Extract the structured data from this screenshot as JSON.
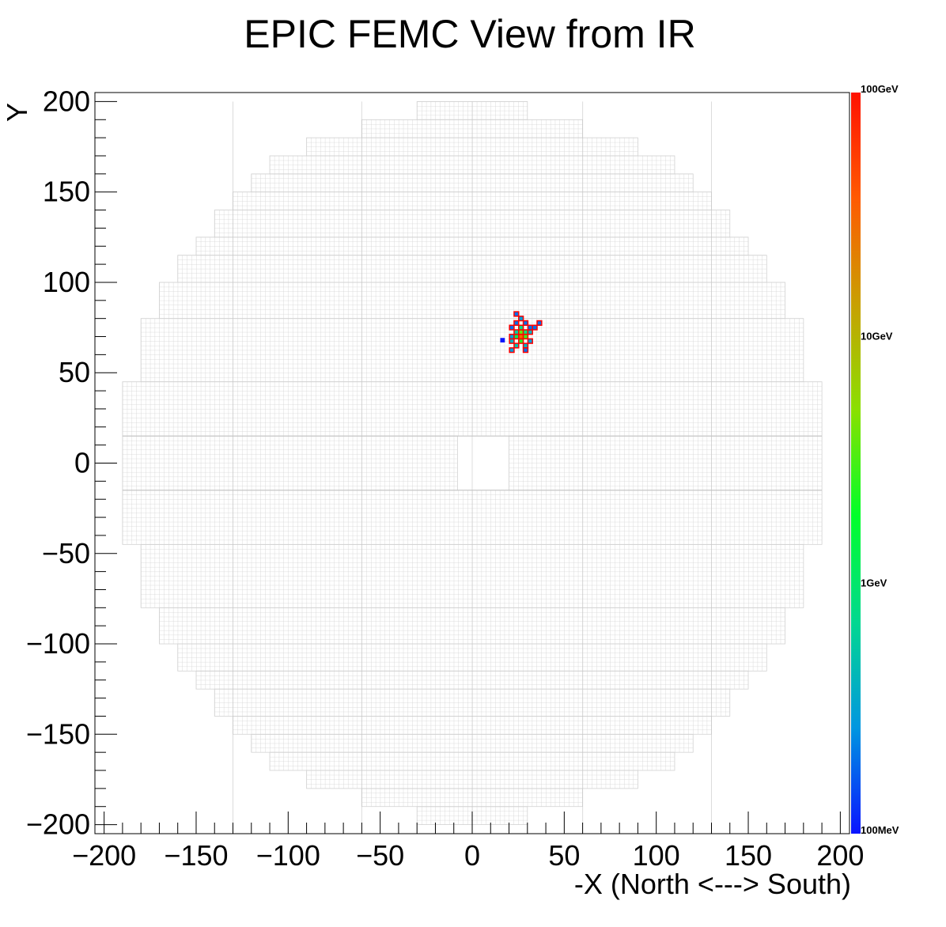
{
  "chart_data": {
    "type": "heatmap",
    "title": "EPIC FEMC View from IR",
    "xlabel": "-X (North <---> South)",
    "ylabel": "Y",
    "xlim": [
      -205,
      205
    ],
    "ylim": [
      -205,
      205
    ],
    "x_ticks": [
      -200,
      -150,
      -100,
      -50,
      0,
      50,
      100,
      150,
      200
    ],
    "x_tick_labels": [
      "−200",
      "−150",
      "−100",
      "−50",
      "0",
      "50",
      "100",
      "150",
      "200"
    ],
    "y_ticks": [
      -200,
      -150,
      -100,
      -50,
      0,
      50,
      100,
      150,
      200
    ],
    "y_tick_labels": [
      "−200",
      "−150",
      "−100",
      "−50",
      "0",
      "50",
      "100",
      "150",
      "200"
    ],
    "color_scale": {
      "scale": "log",
      "labels": [
        "100MeV",
        "1GeV",
        "10GeV",
        "100GeV"
      ],
      "colors": [
        "#0a14ff",
        "#0096e0",
        "#00d890",
        "#00ff2a",
        "#8ae000",
        "#c8a000",
        "#ff5a00",
        "#ff1200"
      ]
    },
    "detector": {
      "tower_size": 2.5,
      "outline_color": "#d2d2d2",
      "beam_hole": {
        "x": [
          -8,
          20
        ],
        "y": [
          -15,
          15
        ]
      },
      "rows": [
        {
          "y": [
            190,
            200
          ],
          "x": [
            -30,
            30
          ]
        },
        {
          "y": [
            180,
            190
          ],
          "x": [
            -60,
            60
          ]
        },
        {
          "y": [
            170,
            180
          ],
          "x": [
            -90,
            90
          ]
        },
        {
          "y": [
            160,
            170
          ],
          "x": [
            -110,
            110
          ]
        },
        {
          "y": [
            150,
            160
          ],
          "x": [
            -120,
            120
          ]
        },
        {
          "y": [
            140,
            150
          ],
          "x": [
            -130,
            130
          ]
        },
        {
          "y": [
            125,
            140
          ],
          "x": [
            -140,
            140
          ]
        },
        {
          "y": [
            115,
            125
          ],
          "x": [
            -150,
            150
          ]
        },
        {
          "y": [
            100,
            115
          ],
          "x": [
            -160,
            160
          ]
        },
        {
          "y": [
            80,
            100
          ],
          "x": [
            -170,
            170
          ]
        },
        {
          "y": [
            45,
            80
          ],
          "x": [
            -180,
            180
          ]
        },
        {
          "y": [
            15,
            45
          ],
          "x": [
            -190,
            190
          ]
        },
        {
          "y": [
            -15,
            15
          ],
          "x": [
            -190,
            190
          ]
        },
        {
          "y": [
            -45,
            -15
          ],
          "x": [
            -190,
            190
          ]
        },
        {
          "y": [
            -80,
            -45
          ],
          "x": [
            -180,
            180
          ]
        },
        {
          "y": [
            -100,
            -80
          ],
          "x": [
            -170,
            170
          ]
        },
        {
          "y": [
            -115,
            -100
          ],
          "x": [
            -160,
            160
          ]
        },
        {
          "y": [
            -125,
            -115
          ],
          "x": [
            -150,
            150
          ]
        },
        {
          "y": [
            -140,
            -125
          ],
          "x": [
            -140,
            140
          ]
        },
        {
          "y": [
            -150,
            -140
          ],
          "x": [
            -130,
            130
          ]
        },
        {
          "y": [
            -160,
            -150
          ],
          "x": [
            -120,
            120
          ]
        },
        {
          "y": [
            -170,
            -160
          ],
          "x": [
            -110,
            110
          ]
        },
        {
          "y": [
            -180,
            -170
          ],
          "x": [
            -90,
            90
          ]
        },
        {
          "y": [
            -190,
            -180
          ],
          "x": [
            -60,
            60
          ]
        },
        {
          "y": [
            -200,
            -190
          ],
          "x": [
            -30,
            30
          ]
        }
      ]
    },
    "hits": [
      {
        "x": 16.5,
        "y": 68,
        "e": 0.1
      },
      {
        "x": 21.5,
        "y": 62.5,
        "e": 0.3
      },
      {
        "x": 21.5,
        "y": 67.5,
        "e": 0.4
      },
      {
        "x": 21.5,
        "y": 70,
        "e": 0.3
      },
      {
        "x": 21.5,
        "y": 75,
        "e": 0.2
      },
      {
        "x": 24,
        "y": 65,
        "e": 0.5
      },
      {
        "x": 24,
        "y": 70,
        "e": 1.2
      },
      {
        "x": 24,
        "y": 72.5,
        "e": 0.6
      },
      {
        "x": 24,
        "y": 77.5,
        "e": 0.2
      },
      {
        "x": 24,
        "y": 82.5,
        "e": 0.2
      },
      {
        "x": 26.5,
        "y": 67.5,
        "e": 2.5
      },
      {
        "x": 26.5,
        "y": 70,
        "e": 30
      },
      {
        "x": 26.5,
        "y": 72.5,
        "e": 4.0
      },
      {
        "x": 26.5,
        "y": 75,
        "e": 0.8
      },
      {
        "x": 26.5,
        "y": 80,
        "e": 0.3
      },
      {
        "x": 29,
        "y": 65,
        "e": 0.4
      },
      {
        "x": 29,
        "y": 70,
        "e": 3.0
      },
      {
        "x": 29,
        "y": 72.5,
        "e": 0.9
      },
      {
        "x": 29,
        "y": 77.5,
        "e": 0.2
      },
      {
        "x": 29,
        "y": 62.5,
        "e": 0.2
      },
      {
        "x": 31.5,
        "y": 67.5,
        "e": 0.3
      },
      {
        "x": 31.5,
        "y": 72.5,
        "e": 0.4
      },
      {
        "x": 31.5,
        "y": 75,
        "e": 0.2
      },
      {
        "x": 34,
        "y": 75,
        "e": 0.2
      },
      {
        "x": 36.5,
        "y": 77.5,
        "e": 0.2
      }
    ]
  }
}
